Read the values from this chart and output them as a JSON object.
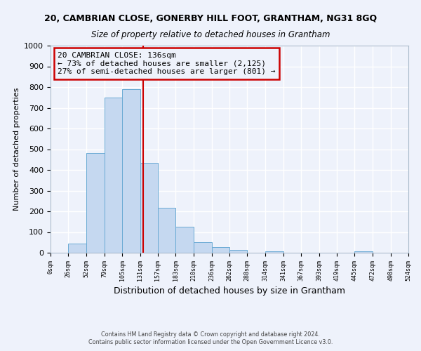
{
  "title": "20, CAMBRIAN CLOSE, GONERBY HILL FOOT, GRANTHAM, NG31 8GQ",
  "subtitle": "Size of property relative to detached houses in Grantham",
  "xlabel": "Distribution of detached houses by size in Grantham",
  "ylabel": "Number of detached properties",
  "bar_edges": [
    0,
    26,
    52,
    79,
    105,
    131,
    157,
    183,
    210,
    236,
    262,
    288,
    314,
    341,
    367,
    393,
    419,
    445,
    472,
    498,
    524
  ],
  "bar_heights": [
    0,
    43,
    483,
    750,
    790,
    435,
    217,
    125,
    52,
    28,
    15,
    0,
    8,
    0,
    0,
    0,
    0,
    8,
    0,
    0
  ],
  "bar_color": "#c5d8f0",
  "bar_edge_color": "#6aaad4",
  "property_line_x": 136,
  "property_line_color": "#cc0000",
  "annotation_title": "20 CAMBRIAN CLOSE: 136sqm",
  "annotation_line1": "← 73% of detached houses are smaller (2,125)",
  "annotation_line2": "27% of semi-detached houses are larger (801) →",
  "annotation_box_color": "#cc0000",
  "ylim": [
    0,
    1000
  ],
  "xlim": [
    0,
    524
  ],
  "tick_labels": [
    "0sqm",
    "26sqm",
    "52sqm",
    "79sqm",
    "105sqm",
    "131sqm",
    "157sqm",
    "183sqm",
    "210sqm",
    "236sqm",
    "262sqm",
    "288sqm",
    "314sqm",
    "341sqm",
    "367sqm",
    "393sqm",
    "419sqm",
    "445sqm",
    "472sqm",
    "498sqm",
    "524sqm"
  ],
  "footer1": "Contains HM Land Registry data © Crown copyright and database right 2024.",
  "footer2": "Contains public sector information licensed under the Open Government Licence v3.0.",
  "bg_color": "#eef2fb",
  "grid_color": "#ffffff"
}
